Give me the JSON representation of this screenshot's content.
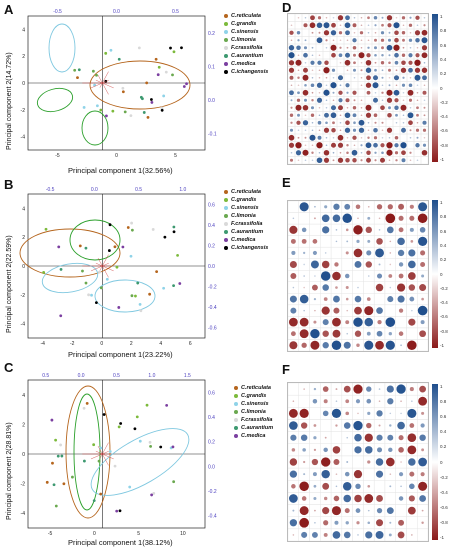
{
  "panels": {
    "A": {
      "letter": "A",
      "xlabel": "Principal component 1(32.56%)",
      "ylabel": "Principal component 2(14.72%)",
      "x_ticks": [
        "-5",
        "0",
        "5"
      ],
      "y_ticks": [
        "4",
        "2",
        "0",
        "-2",
        "-4"
      ],
      "top_ticks": [
        "-0.5",
        "0.0",
        "0.5"
      ],
      "right_ticks": [
        "0.2",
        "0.1",
        "0.0",
        "-0.1"
      ]
    },
    "B": {
      "letter": "B",
      "xlabel": "Principal component 1(23.22%)",
      "ylabel": "Principal component 2(22.59%)",
      "x_ticks": [
        "-4",
        "-2",
        "0",
        "2",
        "4",
        "6"
      ],
      "y_ticks": [
        "4",
        "2",
        "0",
        "-2",
        "-4"
      ],
      "top_ticks": [
        "-0.5",
        "0.0",
        "0.5",
        "1.0"
      ],
      "right_ticks": [
        "0.6",
        "0.4",
        "0.2",
        "0.0",
        "-0.2",
        "-0.4",
        "-0.6"
      ]
    },
    "C": {
      "letter": "C",
      "xlabel": "Principal component 1(38.12%)",
      "ylabel": "Principal component 2(28.81%)",
      "x_ticks": [
        "-5",
        "0",
        "5",
        "10"
      ],
      "y_ticks": [
        "4",
        "2",
        "0",
        "-2",
        "-4"
      ],
      "top_ticks": [
        "0.5",
        "0.0",
        "0.5",
        "1.0",
        "1.5"
      ],
      "right_ticks": [
        "0.6",
        "0.4",
        "0.2",
        "0.0",
        "-0.2",
        "-0.4"
      ]
    },
    "D": {
      "letter": "D"
    },
    "E": {
      "letter": "E"
    },
    "F": {
      "letter": "F"
    }
  },
  "legend_A": [
    {
      "name": "C.reticulata",
      "color": "#b5651d"
    },
    {
      "name": "C.grandis",
      "color": "#7cba3b"
    },
    {
      "name": "C.sinensis",
      "color": "#8fd3e8"
    },
    {
      "name": "C.limonia",
      "color": "#6aa84f"
    },
    {
      "name": "F.crassifolia",
      "color": "#d9d9d9"
    },
    {
      "name": "C.aurantium",
      "color": "#3d9970"
    },
    {
      "name": "C.medica",
      "color": "#7b3fa0"
    },
    {
      "name": "C.ichangensis",
      "color": "#000000"
    }
  ],
  "legend_B": [
    {
      "name": "C.reticulata",
      "color": "#b5651d"
    },
    {
      "name": "C.grandis",
      "color": "#7cba3b"
    },
    {
      "name": "C.sinensis",
      "color": "#8fd3e8"
    },
    {
      "name": "C.limonia",
      "color": "#6aa84f"
    },
    {
      "name": "F.crassifolia",
      "color": "#d9d9d9"
    },
    {
      "name": "C.aurantium",
      "color": "#3d9970"
    },
    {
      "name": "C.medica",
      "color": "#7b3fa0"
    },
    {
      "name": "C.ichangensis",
      "color": "#000000"
    }
  ],
  "legend_C": [
    {
      "name": "C.reticulata",
      "color": "#b5651d"
    },
    {
      "name": "C.grandis",
      "color": "#7cba3b"
    },
    {
      "name": "C.sinensis",
      "color": "#8fd3e8"
    },
    {
      "name": "C.limonia",
      "color": "#6aa84f"
    },
    {
      "name": "F.crassifolia",
      "color": "#d9d9d9"
    },
    {
      "name": "C.aurantium",
      "color": "#3d9970"
    },
    {
      "name": "C.medica",
      "color": "#7b3fa0"
    }
  ],
  "colorbar_ticks": [
    "1",
    "0.8",
    "0.6",
    "0.4",
    "0.2",
    "0",
    "-0.2",
    "-0.4",
    "-0.6",
    "-0.8",
    "-1"
  ],
  "colors": {
    "positive": "#1f4e8c",
    "negative": "#8b1a1a",
    "ellipse_red": "#b5651d",
    "ellipse_green": "#2ca02c",
    "ellipse_blue": "#7fc8e0",
    "axis_blue": "#4b3fbf"
  }
}
